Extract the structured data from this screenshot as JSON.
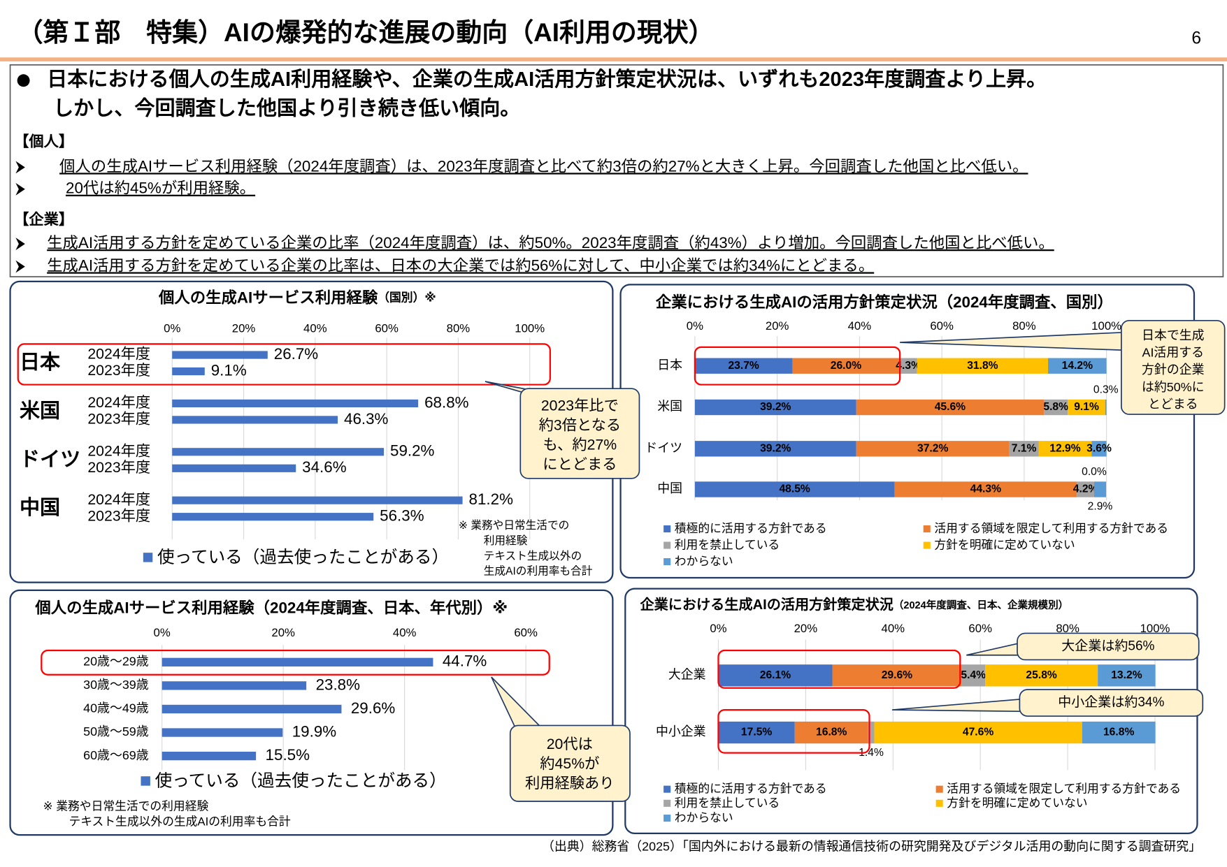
{
  "header": {
    "title": "（第Ｉ部　特集）AIの爆発的な進展の動向（AI利用の現状）",
    "page": "6"
  },
  "summary": {
    "headline": [
      "日本における個人の生成AI利用経験や、企業の生成AI活用方針策定状況は、いずれも2023年度調査より上昇。",
      "しかし、今回調査した他国より引き続き低い傾向。"
    ],
    "sections": [
      {
        "label": "【個人】",
        "bullets": [
          "個人の生成AIサービス利用経験（2024年度調査）は、2023年度調査と比べて約3倍の約27%と大きく上昇。今回調査した他国と比べ低い。",
          "20代は約45%が利用経験。"
        ]
      },
      {
        "label": "【企業】",
        "bullets": [
          "生成AI活用する方針を定めている企業の比率（2024年度調査）は、約50%。2023年度調査（約43%）より増加。今回調査した他国と比べ低い。",
          "生成AI活用する方針を定めている企業の比率は、日本の大企業では約56%に対して、中小企業では約34%にとどまる。"
        ]
      }
    ]
  },
  "chart_data": [
    {
      "type": "bar",
      "title": "個人の生成AIサービス利用経験",
      "subtitle": "（国別）※",
      "categories": [
        "日本",
        "米国",
        "ドイツ",
        "中国"
      ],
      "color": "#4472c4",
      "series": [
        {
          "name": "2024年度",
          "values": [
            26.7,
            68.8,
            59.2,
            81.2
          ],
          "value_labels": [
            "26.7%",
            "68.8%",
            "59.2%",
            "81.2%"
          ]
        },
        {
          "name": "2023年度",
          "values": [
            9.1,
            46.3,
            34.6,
            56.3
          ],
          "value_labels": [
            "9.1%",
            "46.3%",
            "34.6%",
            "56.3%"
          ]
        }
      ],
      "legend": "使っている（過去使ったことがある）",
      "xlim": [
        0,
        100
      ],
      "xticks": [
        {
          "value": 0,
          "label": "0%"
        },
        {
          "value": 20,
          "label": "20%"
        },
        {
          "value": 40,
          "label": "40%"
        },
        {
          "value": 60,
          "label": "60%"
        },
        {
          "value": 80,
          "label": "80%"
        },
        {
          "value": 100,
          "label": "100%"
        }
      ],
      "grid": true,
      "notes": [
        "※ 業務や日常生活での",
        "利用経験",
        "テキスト生成以外の",
        "生成AIの利用率も合計"
      ],
      "callouts": [
        [
          "2023年比で",
          "約3倍となる",
          "も、約27%",
          "にとどまる"
        ]
      ]
    },
    {
      "type": "bar",
      "title": "個人の生成AIサービス利用経験（2024年度調査、日本、年代別）※",
      "categories": [
        "20歳～29歳",
        "30歳～39歳",
        "40歳～49歳",
        "50歳～59歳",
        "60歳～69歳"
      ],
      "color": "#4472c4",
      "values": [
        44.7,
        23.8,
        29.6,
        19.9,
        15.5
      ],
      "value_labels": [
        "44.7%",
        "23.8%",
        "29.6%",
        "19.9%",
        "15.5%"
      ],
      "legend": "使っている（過去使ったことがある）",
      "xlim": [
        0,
        60
      ],
      "xticks": [
        {
          "value": 0,
          "label": "0%"
        },
        {
          "value": 20,
          "label": "20%"
        },
        {
          "value": 40,
          "label": "40%"
        },
        {
          "value": 60,
          "label": "60%"
        }
      ],
      "grid": true,
      "notes": [
        "※ 業務や日常生活での利用経験",
        "テキスト生成以外の生成AIの利用率も合計"
      ],
      "callouts": [
        [
          "20代は",
          "約45%が",
          "利用経験あり"
        ]
      ]
    },
    {
      "type": "stacked_bar",
      "title": "企業における生成AIの活用方針策定状況（2024年度調査、国別）",
      "categories": [
        "日本",
        "米国",
        "ドイツ",
        "中国"
      ],
      "series": [
        {
          "name": "積極的に活用する方針である",
          "color": "#4472c4",
          "values": [
            23.7,
            39.2,
            39.2,
            48.5
          ],
          "value_labels": [
            "23.7%",
            "39.2%",
            "39.2%",
            "48.5%"
          ]
        },
        {
          "name": "活用する領域を限定して利用する方針である",
          "color": "#ed7d31",
          "values": [
            26.0,
            45.6,
            37.2,
            44.3
          ],
          "value_labels": [
            "26.0%",
            "45.6%",
            "37.2%",
            "44.3%"
          ]
        },
        {
          "name": "利用を禁止している",
          "color": "#a5a5a5",
          "values": [
            4.3,
            5.8,
            7.1,
            4.2
          ],
          "value_labels": [
            "4.3%",
            "5.8%",
            "7.1%",
            "4.2%"
          ]
        },
        {
          "name": "方針を明確に定めていない",
          "color": "#ffc000",
          "values": [
            31.8,
            9.1,
            12.9,
            0.0
          ],
          "value_labels": [
            "31.8%",
            "9.1%",
            "12.9%",
            "0.0%"
          ]
        },
        {
          "name": "わからない",
          "color": "#5b9bd5",
          "values": [
            14.2,
            0.3,
            3.6,
            2.9
          ],
          "value_labels": [
            "14.2%",
            "0.3%",
            "3.6%",
            "2.9%"
          ]
        }
      ],
      "xlim": [
        0,
        100
      ],
      "xticks": [
        {
          "value": 0,
          "label": "0%"
        },
        {
          "value": 20,
          "label": "20%"
        },
        {
          "value": 40,
          "label": "40%"
        },
        {
          "value": 60,
          "label": "60%"
        },
        {
          "value": 80,
          "label": "80%"
        },
        {
          "value": 100,
          "label": "100%"
        }
      ],
      "grid": true,
      "callouts": [
        [
          "日本で生成",
          "AI活用する",
          "方針の企業",
          "は約50%に",
          "とどまる"
        ]
      ]
    },
    {
      "type": "stacked_bar",
      "title": "企業における生成AIの活用方針策定状況",
      "subtitle": "（2024年度調査、日本、企業規模別）",
      "categories": [
        "大企業",
        "中小企業"
      ],
      "series": [
        {
          "name": "積極的に活用する方針である",
          "color": "#4472c4",
          "values": [
            26.1,
            17.5
          ],
          "value_labels": [
            "26.1%",
            "17.5%"
          ]
        },
        {
          "name": "活用する領域を限定して利用する方針である",
          "color": "#ed7d31",
          "values": [
            29.6,
            16.8
          ],
          "value_labels": [
            "29.6%",
            "16.8%"
          ]
        },
        {
          "name": "利用を禁止している",
          "color": "#a5a5a5",
          "values": [
            5.4,
            1.4
          ],
          "value_labels": [
            "5.4%",
            "1.4%"
          ]
        },
        {
          "name": "方針を明確に定めていない",
          "color": "#ffc000",
          "values": [
            25.8,
            47.6
          ],
          "value_labels": [
            "25.8%",
            "47.6%"
          ]
        },
        {
          "name": "わからない",
          "color": "#5b9bd5",
          "values": [
            13.2,
            16.8
          ],
          "value_labels": [
            "13.2%",
            "16.8%"
          ]
        }
      ],
      "xlim": [
        0,
        100
      ],
      "xticks": [
        {
          "value": 0,
          "label": "0%"
        },
        {
          "value": 20,
          "label": "20%"
        },
        {
          "value": 40,
          "label": "40%"
        },
        {
          "value": 60,
          "label": "60%"
        },
        {
          "value": 80,
          "label": "80%"
        },
        {
          "value": 100,
          "label": "100%"
        }
      ],
      "grid": true,
      "callouts": [
        [
          "大企業は約56%"
        ],
        [
          "中小企業は約34%"
        ]
      ]
    }
  ],
  "source": "（出典）総務省（2025）「国内外における最新の情報通信技術の研究開発及びデジタル活用の動向に関する調査研究」"
}
